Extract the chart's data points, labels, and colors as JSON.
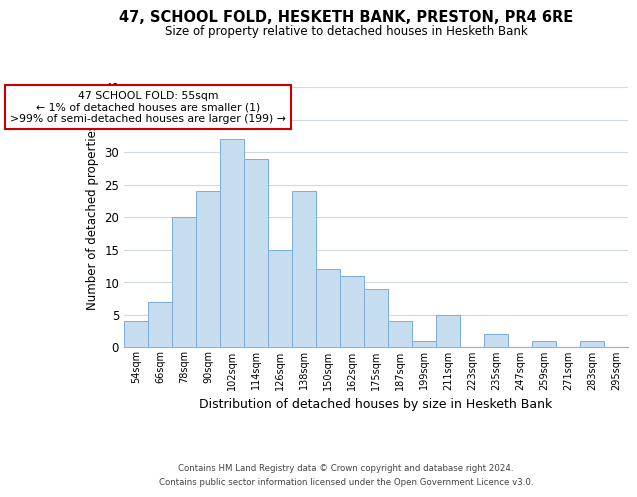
{
  "title": "47, SCHOOL FOLD, HESKETH BANK, PRESTON, PR4 6RE",
  "subtitle": "Size of property relative to detached houses in Hesketh Bank",
  "xlabel": "Distribution of detached houses by size in Hesketh Bank",
  "ylabel": "Number of detached properties",
  "bar_labels": [
    "54sqm",
    "66sqm",
    "78sqm",
    "90sqm",
    "102sqm",
    "114sqm",
    "126sqm",
    "138sqm",
    "150sqm",
    "162sqm",
    "175sqm",
    "187sqm",
    "199sqm",
    "211sqm",
    "223sqm",
    "235sqm",
    "247sqm",
    "259sqm",
    "271sqm",
    "283sqm",
    "295sqm"
  ],
  "bar_values": [
    4,
    7,
    20,
    24,
    32,
    29,
    15,
    24,
    12,
    11,
    9,
    4,
    1,
    5,
    0,
    2,
    0,
    1,
    0,
    1,
    0
  ],
  "bar_color": "#c5ddef",
  "bar_edge_color": "#7aade0",
  "ylim": [
    0,
    40
  ],
  "yticks": [
    0,
    5,
    10,
    15,
    20,
    25,
    30,
    35,
    40
  ],
  "annotation_box_text": "47 SCHOOL FOLD: 55sqm\n← 1% of detached houses are smaller (1)\n>99% of semi-detached houses are larger (199) →",
  "annotation_box_color": "#ffffff",
  "annotation_box_edge_color": "#cc0000",
  "footer_line1": "Contains HM Land Registry data © Crown copyright and database right 2024.",
  "footer_line2": "Contains public sector information licensed under the Open Government Licence v3.0.",
  "background_color": "#ffffff",
  "grid_color": "#d0d8e4"
}
